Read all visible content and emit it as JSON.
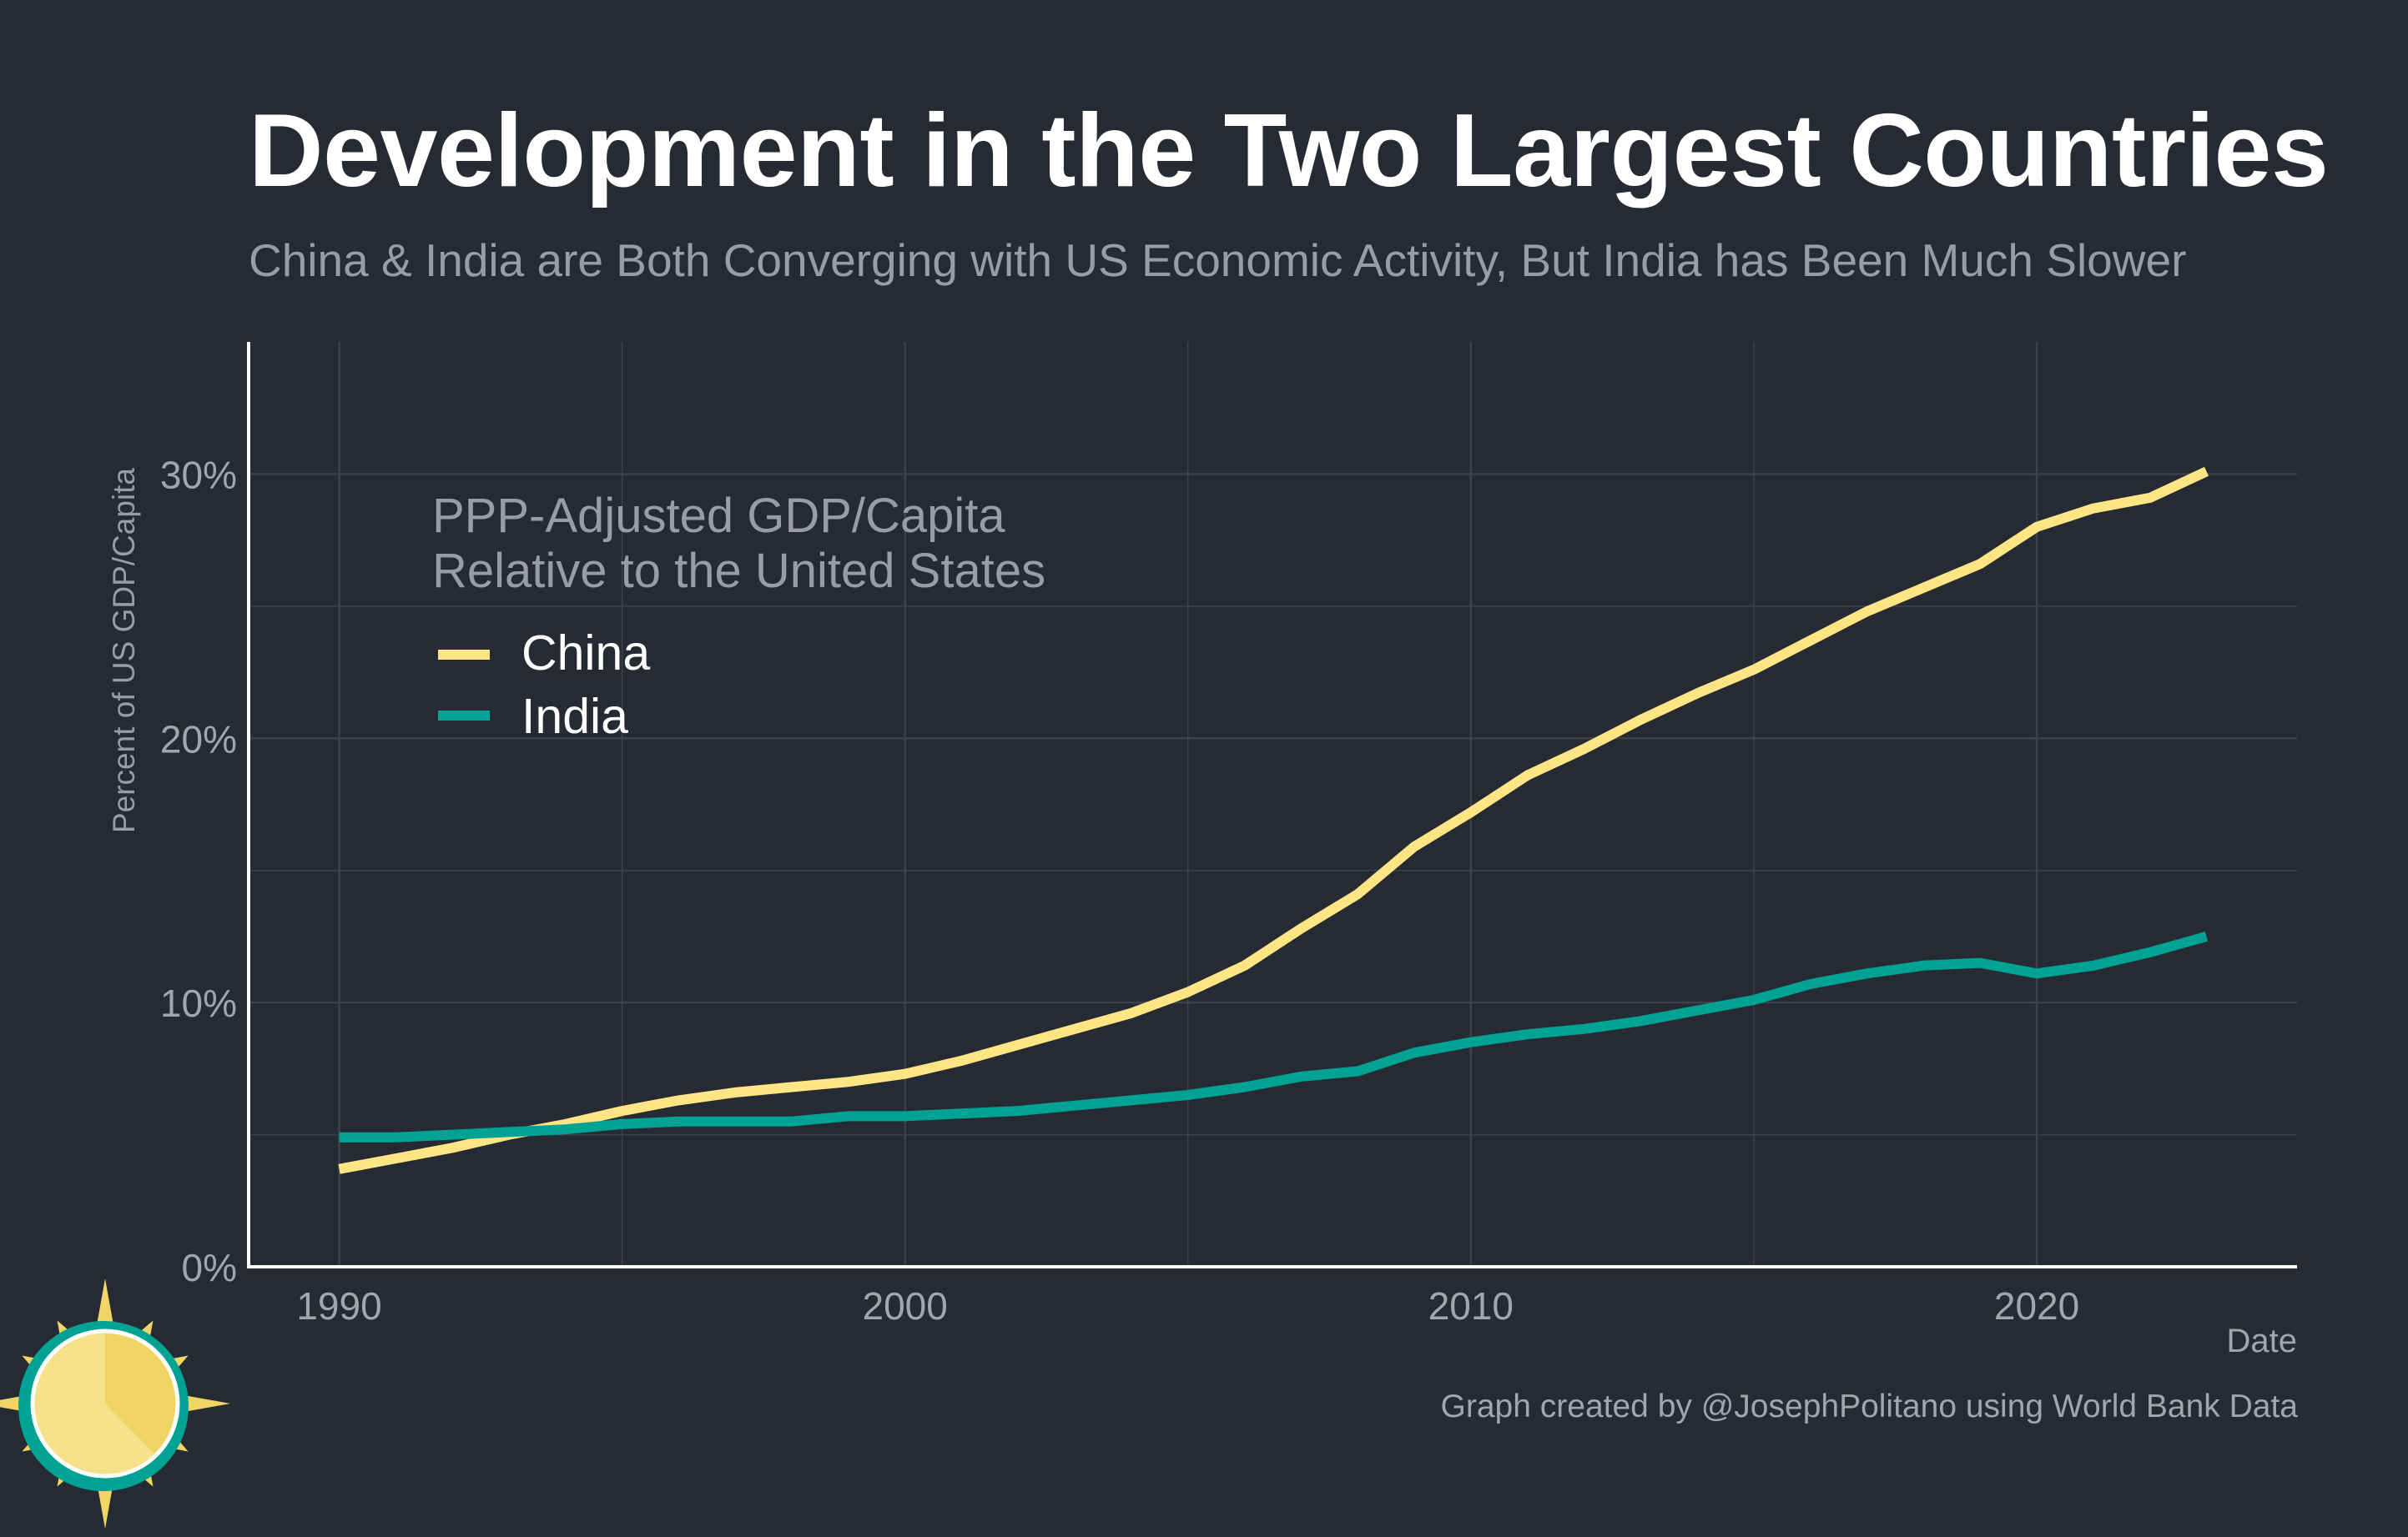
{
  "header": {
    "title": "Development in the Two Largest Countries",
    "subtitle": "China & India are Both Converging with US Economic Activity, But India has Been Much Slower"
  },
  "footer": {
    "caption": "Graph created by @JosephPolitano using World Bank Data"
  },
  "colors": {
    "background": "#262a33",
    "china": "#ffe584",
    "india": "#00a294",
    "grid": "#3c414b",
    "axis": "#ffffff",
    "muted_text": "#9a9ca3"
  },
  "chart_data": {
    "type": "line",
    "title": "Development in the Two Largest Countries",
    "subtitle": "China & India are Both Converging with US Economic Activity, But India has Been Much Slower",
    "xlabel": "Date",
    "ylabel": "Percent of US GDP/Capita",
    "xlim": [
      1988.4,
      2024.6
    ],
    "ylim": [
      0,
      35
    ],
    "x_ticks": [
      1990,
      2000,
      2010,
      2020
    ],
    "x_tick_labels": [
      "1990",
      "2000",
      "2010",
      "2020"
    ],
    "y_ticks": [
      0,
      10,
      20,
      30
    ],
    "y_tick_labels": [
      "0%",
      "10%",
      "20%",
      "30%"
    ],
    "grid": true,
    "legend": {
      "title_lines": [
        "PPP-Adjusted GDP/Capita",
        "Relative to the United States"
      ],
      "placement": "top-left"
    },
    "x": [
      1990,
      1991,
      1992,
      1993,
      1994,
      1995,
      1996,
      1997,
      1998,
      1999,
      2000,
      2001,
      2002,
      2003,
      2004,
      2005,
      2006,
      2007,
      2008,
      2009,
      2010,
      2011,
      2012,
      2013,
      2014,
      2015,
      2016,
      2017,
      2018,
      2019,
      2020,
      2021,
      2022,
      2023
    ],
    "series": [
      {
        "name": "China",
        "color": "#ffe584",
        "values": [
          3.7,
          4.1,
          4.5,
          5.0,
          5.4,
          5.9,
          6.3,
          6.6,
          6.8,
          7.0,
          7.3,
          7.8,
          8.4,
          9.0,
          9.6,
          10.4,
          11.4,
          12.8,
          14.1,
          15.9,
          17.2,
          18.6,
          19.6,
          20.7,
          21.7,
          22.6,
          23.7,
          24.8,
          25.7,
          26.6,
          28.0,
          28.7,
          29.1,
          30.1
        ]
      },
      {
        "name": "India",
        "color": "#00a294",
        "values": [
          4.9,
          4.9,
          5.0,
          5.1,
          5.2,
          5.4,
          5.5,
          5.5,
          5.5,
          5.7,
          5.7,
          5.8,
          5.9,
          6.1,
          6.3,
          6.5,
          6.8,
          7.2,
          7.4,
          8.1,
          8.5,
          8.8,
          9.0,
          9.3,
          9.7,
          10.1,
          10.7,
          11.1,
          11.4,
          11.5,
          11.1,
          11.4,
          11.9,
          12.5
        ]
      }
    ]
  }
}
